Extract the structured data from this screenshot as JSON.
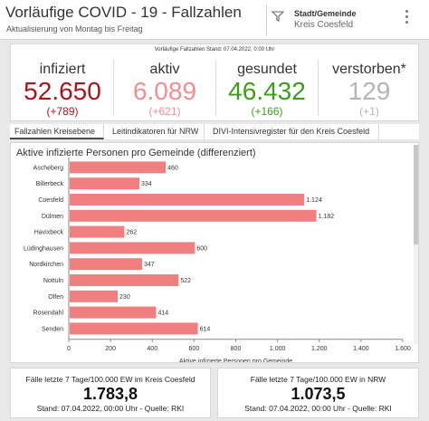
{
  "header": {
    "title": "Vorläufige COVID - 19 - Fallzahlen",
    "subtitle": "Aktualisierung von Montag bis Freitag",
    "selector_label": "Stadt/Gemeinde",
    "selector_value": "Kreis Coesfeld",
    "selector_icon": "filter-icon",
    "menu_icon": "more-vertical-icon"
  },
  "kpi": {
    "caption": "Vorläufige Fallzahlen Stand: 07.04.2022, 0:00 Uhr",
    "items": [
      {
        "label": "infiziert",
        "value": "52.650",
        "delta": "(+789)",
        "color": "#a8151f"
      },
      {
        "label": "aktiv",
        "value": "6.089",
        "delta": "(+621)",
        "color": "#f28e93"
      },
      {
        "label": "gesundet",
        "value": "46.432",
        "delta": "(+166)",
        "color": "#3e9e1b"
      },
      {
        "label": "verstorben*",
        "value": "129",
        "delta": "(+1)",
        "color": "#b5b5b5"
      }
    ]
  },
  "tabs": [
    {
      "label": "Fallzahlen Kreisebene"
    },
    {
      "label": "Leitindikatoren für NRW"
    },
    {
      "label": "DIVI-Intensivregister für den Kreis Coesfeld"
    }
  ],
  "chart_data": {
    "type": "bar",
    "orientation": "horizontal",
    "title": "Aktive infizierte Personen pro Gemeinde (differenziert)",
    "xlabel": "Aktive infizierte Personen pro Gemeinde",
    "categories": [
      "Ascheberg",
      "Billerbeck",
      "Coesfeld",
      "Dülmen",
      "Havixbeck",
      "Lüdinghausen",
      "Nordkirchen",
      "Nottuln",
      "Olfen",
      "Rosendahl",
      "Senden"
    ],
    "values": [
      460,
      334,
      1124,
      1182,
      262,
      600,
      347,
      522,
      230,
      414,
      614
    ],
    "data_labels": [
      "460",
      "334",
      "1.124",
      "1.182",
      "262",
      "600",
      "347",
      "522",
      "230",
      "414",
      "614"
    ],
    "xlim": [
      0,
      1600
    ],
    "ticks": [
      0,
      200,
      400,
      600,
      800,
      1000,
      1200,
      1400,
      1600
    ],
    "tick_labels": [
      "0",
      "200",
      "400",
      "600",
      "800",
      "1.000",
      "1.200",
      "1.400",
      "1.600"
    ],
    "bar_color": "#f08080",
    "grid": false
  },
  "bottom": {
    "left": {
      "title": "Fälle letzte 7 Tage/100.000 EW im Kreis Coesfeld",
      "value": "1.783,8",
      "sub": "Stand: 07.04.2022, 00:00 Uhr - Quelle: RKI"
    },
    "right": {
      "title": "Fälle letzte 7 Tage/100.000 EW in NRW",
      "value": "1.073,5",
      "sub": "Stand: 07.04.2022, 00:00 Uhr - Quelle: RKI"
    }
  }
}
